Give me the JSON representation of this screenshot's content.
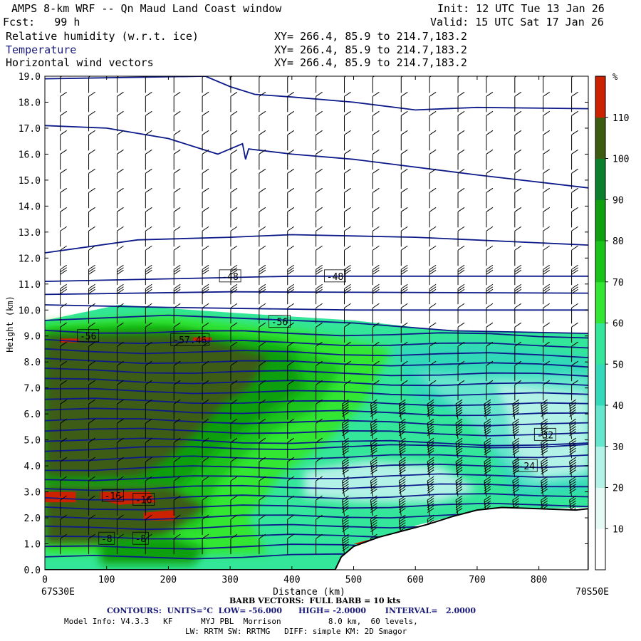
{
  "header": {
    "title": "AMPS 8-km WRF -- Qn Maud Land Coast window",
    "fcst": "Fcst:   99 h",
    "init": "Init: 12 UTC Tue 13 Jan 26",
    "valid": "Valid: 15 UTC Sat 17 Jan 26",
    "field1": "Relative humidity (w.r.t. ice)",
    "field2": "Temperature",
    "field3": "Horizontal wind vectors",
    "xy1": "XY= 266.4, 85.9 to 214.7,183.2",
    "xy2": "XY= 266.4, 85.9 to 214.7,183.2",
    "xy3": "XY= 266.4, 85.9 to 214.7,183.2"
  },
  "chart_data": {
    "type": "heatmap",
    "title": "Relative humidity (w.r.t. ice), Temperature, Horizontal wind vectors",
    "xlabel": "Distance (km)",
    "ylabel": "Height (km)",
    "xlim": [
      0,
      880
    ],
    "ylim": [
      0,
      19
    ],
    "x_ticks": [
      0,
      100,
      200,
      300,
      400,
      500,
      600,
      700,
      800
    ],
    "y_ticks": [
      "0.0",
      "1.0",
      "2.0",
      "3.0",
      "4.0",
      "5.0",
      "6.0",
      "7.0",
      "8.0",
      "9.0",
      "10.0",
      "11.0",
      "12.0",
      "13.0",
      "14.0",
      "15.0",
      "16.0",
      "17.0",
      "18.0",
      "19.0"
    ],
    "left_endpoint": "67S30E",
    "right_endpoint": "70S50E",
    "colorbar": {
      "unit": "%",
      "ticks": [
        10,
        20,
        30,
        40,
        50,
        60,
        70,
        80,
        90,
        100,
        110
      ],
      "colors": [
        "#ffffff",
        "#e6faf5",
        "#b3f2e6",
        "#66e6cc",
        "#33d9b8",
        "#33e699",
        "#33e633",
        "#1ac31a",
        "#0f9f0f",
        "#0b7f2b",
        "#3d5c12",
        "#cc2200"
      ]
    },
    "contour_labels": [
      "-48",
      "-48",
      "-56",
      "-56",
      "-57.46",
      "-16",
      "-16",
      "-8",
      "-8",
      "-32",
      "-24"
    ],
    "terrain_km": [
      [
        0,
        0
      ],
      [
        470,
        0
      ],
      [
        480,
        0.5
      ],
      [
        500,
        0.9
      ],
      [
        540,
        1.25
      ],
      [
        580,
        1.5
      ],
      [
        620,
        1.75
      ],
      [
        660,
        2.05
      ],
      [
        700,
        2.3
      ],
      [
        740,
        2.4
      ],
      [
        800,
        2.35
      ],
      [
        860,
        2.3
      ],
      [
        880,
        2.35
      ]
    ],
    "footer": {
      "barb": "BARB VECTORS:  FULL BARB = 10 kts",
      "contours": "CONTOURS:  UNITS=°C  LOW= -56.000      HIGH= -2.0000       INTERVAL=   2.0000",
      "model1": "Model Info: V4.3.3   KF      MYJ PBL  Morrison          8.0 km,  60 levels,",
      "model2": "LW: RRTM SW: RRTMG   DIFF: simple KM: 2D Smagor"
    }
  }
}
